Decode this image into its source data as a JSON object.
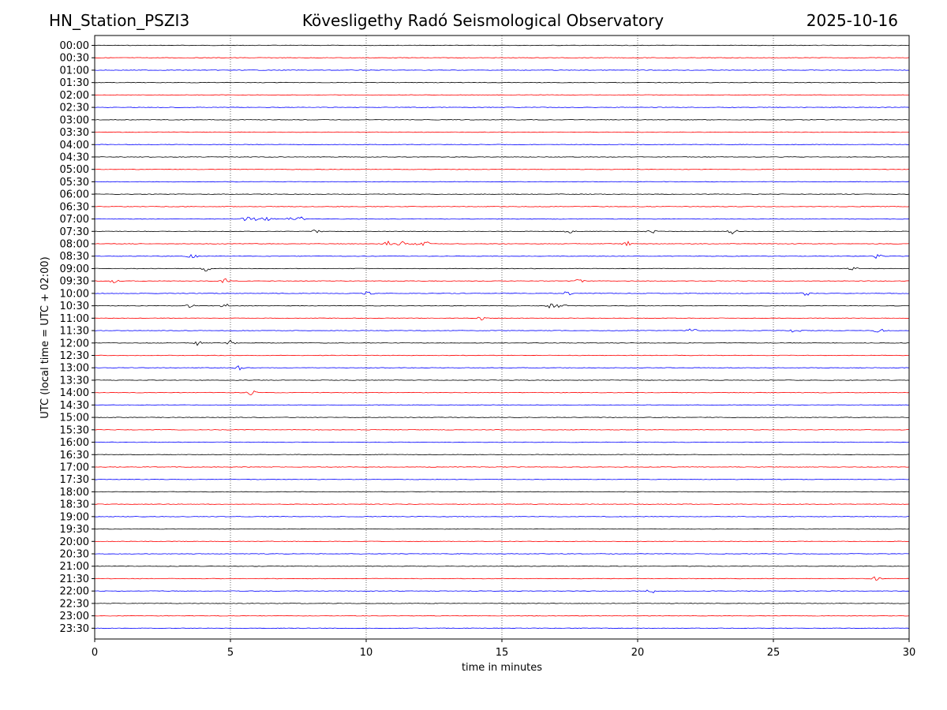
{
  "header": {
    "station": "HN_Station_PSZI3",
    "observatory": "Kövesligethy Radó Seismological Observatory",
    "date": "2025-10-16"
  },
  "chart_data": {
    "type": "line",
    "title": "Kövesligethy Radó Seismological Observatory",
    "xlabel": "time in minutes",
    "ylabel": "UTC (local time = UTC + 02:00)",
    "xlim": [
      0,
      30
    ],
    "x_ticks": [
      "0",
      "5",
      "10",
      "15",
      "20",
      "25",
      "30"
    ],
    "x_gridlines": [
      5,
      10,
      15,
      20,
      25
    ],
    "grid": "vertical dotted",
    "trace_colors": [
      "#000000",
      "#ff0000",
      "#0000ff"
    ],
    "rows": [
      "00:00",
      "00:30",
      "01:00",
      "01:30",
      "02:00",
      "02:30",
      "03:00",
      "03:30",
      "04:00",
      "04:30",
      "05:00",
      "05:30",
      "06:00",
      "06:30",
      "07:00",
      "07:30",
      "08:00",
      "08:30",
      "09:00",
      "09:30",
      "10:00",
      "10:30",
      "11:00",
      "11:30",
      "12:00",
      "12:30",
      "13:00",
      "13:30",
      "14:00",
      "14:30",
      "15:00",
      "15:30",
      "16:00",
      "16:30",
      "17:00",
      "17:30",
      "18:00",
      "18:30",
      "19:00",
      "19:30",
      "20:00",
      "20:30",
      "21:00",
      "21:30",
      "22:00",
      "22:30",
      "23:00",
      "23:30"
    ],
    "events": [
      {
        "row": "07:00",
        "minutes": [
          5.6,
          6.0,
          6.4,
          7.1,
          7.6
        ]
      },
      {
        "row": "07:30",
        "minutes": [
          8.2,
          17.5,
          20.5,
          23.5
        ]
      },
      {
        "row": "08:00",
        "minutes": [
          10.8,
          11.3,
          11.8,
          12.2,
          19.6
        ]
      },
      {
        "row": "08:30",
        "minutes": [
          3.6,
          28.8
        ]
      },
      {
        "row": "09:00",
        "minutes": [
          4.1,
          27.9
        ]
      },
      {
        "row": "09:30",
        "minutes": [
          0.7,
          4.8,
          17.9
        ]
      },
      {
        "row": "10:00",
        "minutes": [
          10.1,
          17.4,
          26.2
        ]
      },
      {
        "row": "10:30",
        "minutes": [
          3.5,
          4.8,
          16.8,
          17.2
        ]
      },
      {
        "row": "11:00",
        "minutes": [
          14.3
        ]
      },
      {
        "row": "11:30",
        "minutes": [
          22.0,
          25.8,
          28.9
        ]
      },
      {
        "row": "12:00",
        "minutes": [
          3.8,
          5.0
        ]
      },
      {
        "row": "13:00",
        "minutes": [
          5.3
        ]
      },
      {
        "row": "14:00",
        "minutes": [
          5.8
        ]
      },
      {
        "row": "21:30",
        "minutes": [
          28.8
        ]
      },
      {
        "row": "22:00",
        "minutes": [
          20.5
        ]
      }
    ]
  }
}
